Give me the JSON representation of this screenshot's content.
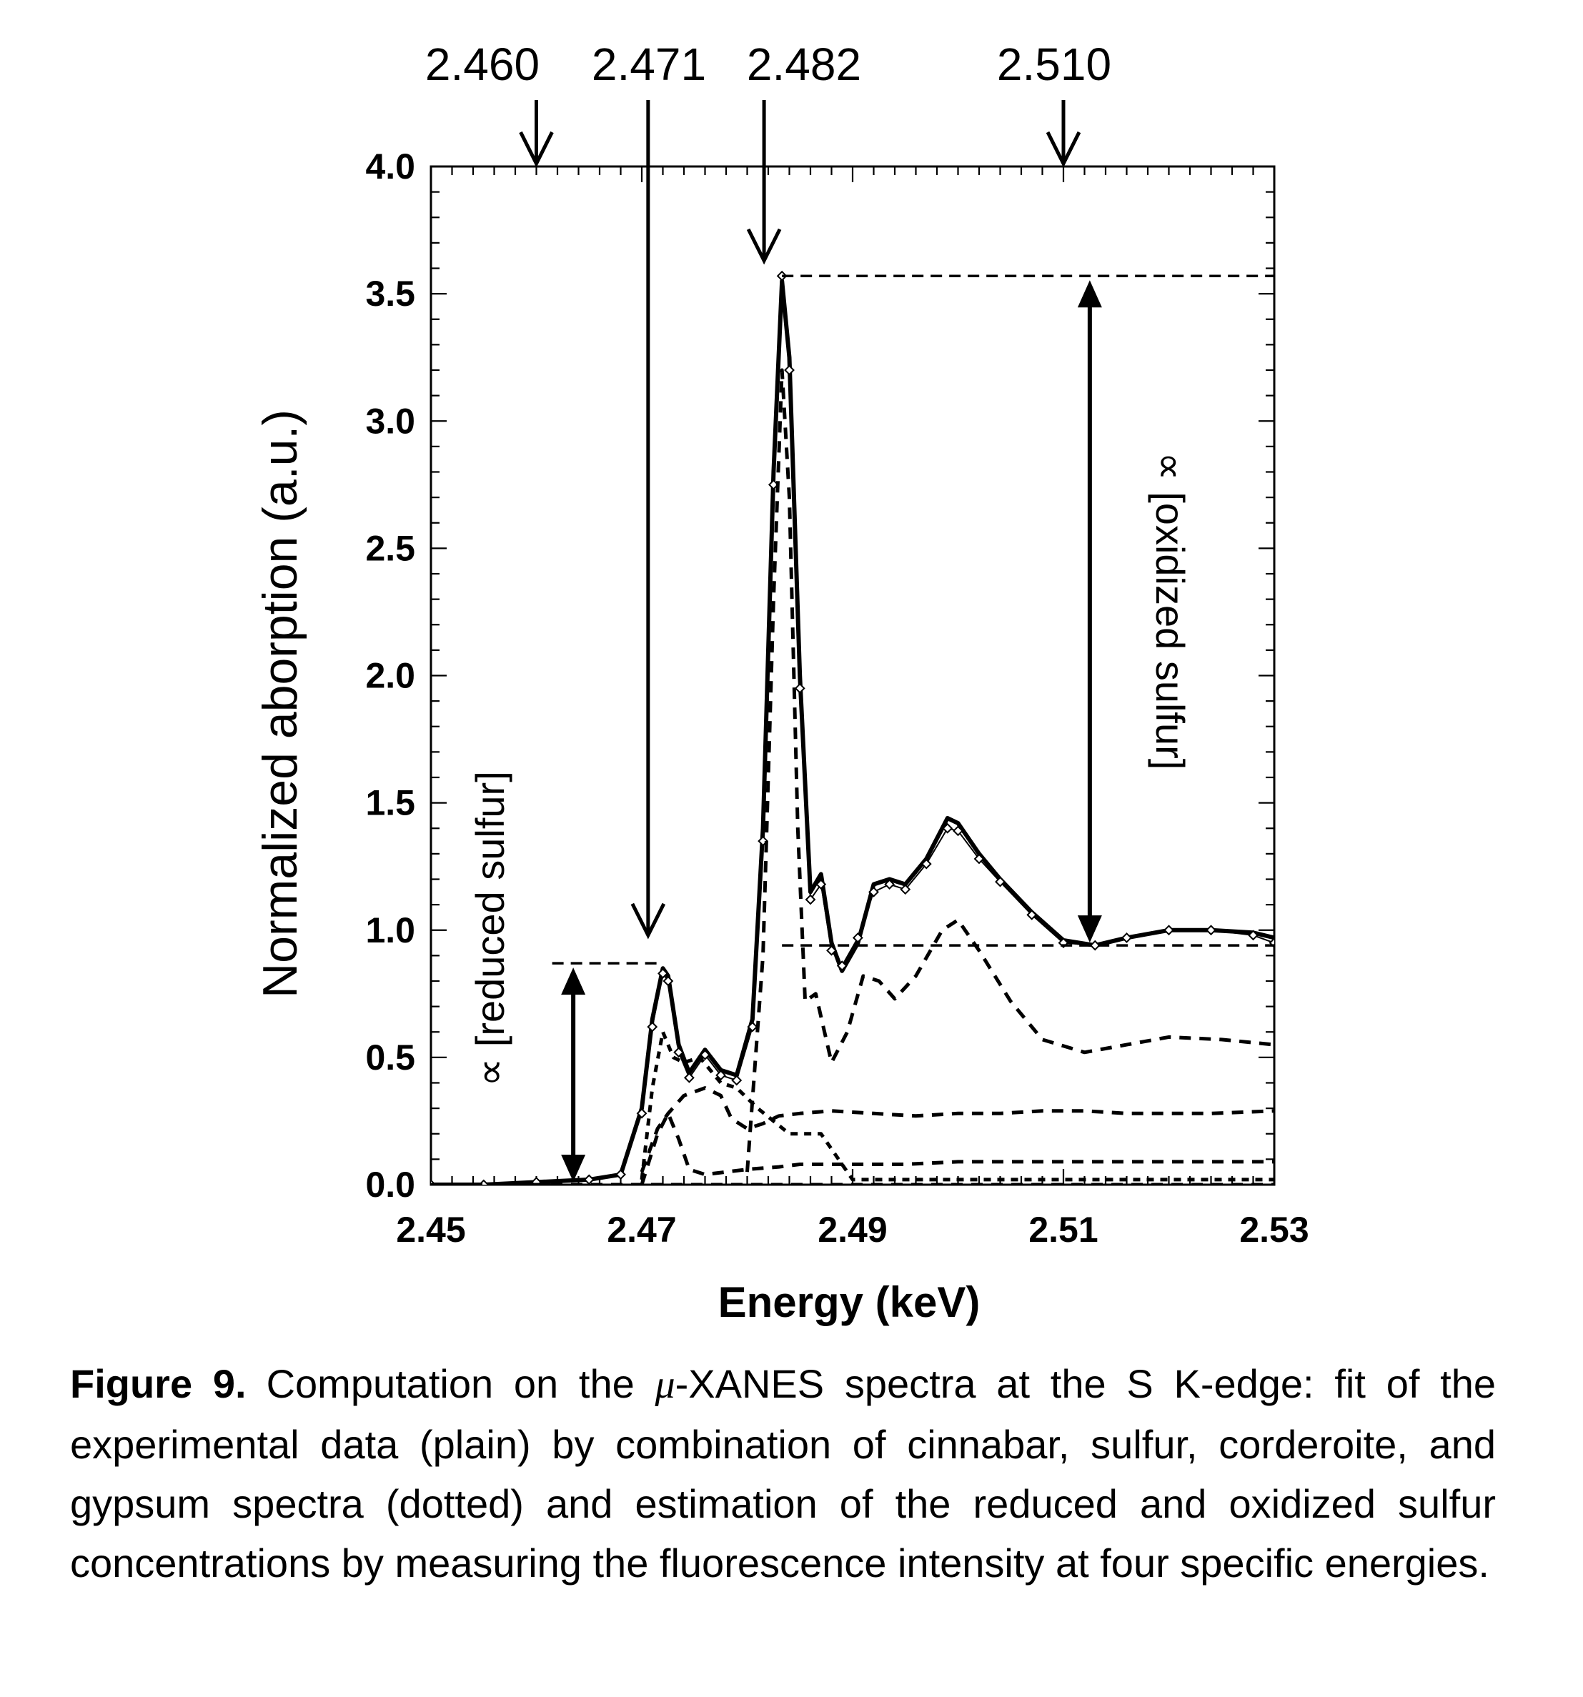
{
  "chart_data": {
    "type": "line",
    "xlabel": "Energy (keV)",
    "ylabel": "Normalized aborption (a.u.)",
    "xlim": [
      2.45,
      2.53
    ],
    "ylim": [
      0.0,
      4.0
    ],
    "x_ticks": [
      "2.45",
      "2.47",
      "2.49",
      "2.51",
      "2.53"
    ],
    "y_ticks": [
      "0.0",
      "0.5",
      "1.0",
      "1.5",
      "2.0",
      "2.5",
      "3.0",
      "3.5",
      "4.0"
    ],
    "grid": false,
    "energy_markers": [
      {
        "label": "2.460",
        "x": 2.46
      },
      {
        "label": "2.471",
        "x": 2.471
      },
      {
        "label": "2.482",
        "x": 2.482
      },
      {
        "label": "2.510",
        "x": 2.51
      }
    ],
    "reduced_annotation": {
      "text": "∝ [reduced sulfur]",
      "level": 0.87
    },
    "oxidized_annotation": {
      "text": "∝ [oxidized sulfur]",
      "top": 3.57,
      "bottom": 0.94
    },
    "series": [
      {
        "style": "solid",
        "x": [
          2.45,
          2.455,
          2.46,
          2.465,
          2.468,
          2.47,
          2.471,
          2.472,
          2.4725,
          2.4735,
          2.4745,
          2.476,
          2.4775,
          2.479,
          2.4805,
          2.4815,
          2.4825,
          2.4833,
          2.484,
          2.485,
          2.486,
          2.487,
          2.488,
          2.489,
          2.4905,
          2.492,
          2.4935,
          2.495,
          2.497,
          2.499,
          2.5,
          2.502,
          2.504,
          2.507,
          2.51,
          2.513,
          2.516,
          2.52,
          2.524,
          2.528,
          2.53
        ],
        "y": [
          0.0,
          0.0,
          0.01,
          0.02,
          0.04,
          0.3,
          0.65,
          0.85,
          0.82,
          0.55,
          0.44,
          0.53,
          0.45,
          0.43,
          0.65,
          1.4,
          2.8,
          3.55,
          3.25,
          2.0,
          1.15,
          1.22,
          0.95,
          0.84,
          0.95,
          1.18,
          1.2,
          1.18,
          1.28,
          1.44,
          1.42,
          1.3,
          1.2,
          1.07,
          0.96,
          0.94,
          0.97,
          1.0,
          1.0,
          0.99,
          0.97
        ]
      },
      {
        "style": "diamonds",
        "x": [
          2.45,
          2.455,
          2.46,
          2.465,
          2.468,
          2.47,
          2.471,
          2.472,
          2.4725,
          2.4735,
          2.4745,
          2.476,
          2.4775,
          2.479,
          2.4805,
          2.4815,
          2.4825,
          2.4833,
          2.484,
          2.485,
          2.486,
          2.487,
          2.488,
          2.489,
          2.4905,
          2.492,
          2.4935,
          2.495,
          2.497,
          2.499,
          2.5,
          2.502,
          2.504,
          2.507,
          2.51,
          2.513,
          2.516,
          2.52,
          2.524,
          2.528,
          2.53
        ],
        "y": [
          0.0,
          0.0,
          0.01,
          0.02,
          0.04,
          0.28,
          0.62,
          0.83,
          0.8,
          0.52,
          0.42,
          0.51,
          0.43,
          0.41,
          0.62,
          1.35,
          2.75,
          3.57,
          3.2,
          1.95,
          1.12,
          1.18,
          0.92,
          0.86,
          0.97,
          1.15,
          1.18,
          1.16,
          1.26,
          1.4,
          1.39,
          1.28,
          1.19,
          1.06,
          0.95,
          0.94,
          0.97,
          1.0,
          1.0,
          0.98,
          0.95
        ]
      },
      {
        "style": "dashed",
        "x": [
          2.47,
          2.4715,
          2.4725,
          2.474,
          2.476,
          2.4775,
          2.4785,
          2.48,
          2.4815,
          2.483,
          2.485,
          2.488,
          2.492,
          2.496,
          2.5,
          2.504,
          2.508,
          2.512,
          2.516,
          2.52,
          2.524,
          2.53
        ],
        "y": [
          0.05,
          0.22,
          0.28,
          0.35,
          0.38,
          0.35,
          0.26,
          0.22,
          0.24,
          0.27,
          0.28,
          0.29,
          0.28,
          0.27,
          0.28,
          0.28,
          0.29,
          0.29,
          0.28,
          0.28,
          0.28,
          0.29
        ]
      },
      {
        "style": "dashed",
        "x": [
          2.47,
          2.4715,
          2.4725,
          2.4735,
          2.4745,
          2.476,
          2.478,
          2.48,
          2.483,
          2.485,
          2.49,
          2.495,
          2.5,
          2.51,
          2.52,
          2.53
        ],
        "y": [
          0.0,
          0.2,
          0.28,
          0.18,
          0.06,
          0.04,
          0.05,
          0.06,
          0.07,
          0.08,
          0.08,
          0.08,
          0.09,
          0.09,
          0.09,
          0.09
        ]
      },
      {
        "style": "dotted",
        "x": [
          2.47,
          2.471,
          2.472,
          2.473,
          2.474,
          2.4755,
          2.4765,
          2.4775,
          2.479,
          2.481,
          2.484,
          2.487,
          2.49,
          2.5,
          2.51,
          2.52,
          2.53
        ],
        "y": [
          0.02,
          0.38,
          0.6,
          0.5,
          0.48,
          0.5,
          0.45,
          0.4,
          0.38,
          0.3,
          0.2,
          0.2,
          0.02,
          0.02,
          0.02,
          0.02,
          0.02
        ]
      },
      {
        "style": "dashed",
        "x": [
          2.48,
          2.4815,
          2.4825,
          2.4833,
          2.484,
          2.4848,
          2.4855,
          2.4865,
          2.488,
          2.4895,
          2.491,
          2.4925,
          2.494,
          2.496,
          2.4985,
          2.5,
          2.502,
          2.505,
          2.508,
          2.512,
          2.516,
          2.52,
          2.525,
          2.53
        ],
        "y": [
          0.05,
          0.9,
          2.3,
          3.2,
          2.7,
          1.4,
          0.72,
          0.75,
          0.48,
          0.6,
          0.82,
          0.8,
          0.73,
          0.82,
          1.0,
          1.04,
          0.92,
          0.72,
          0.57,
          0.52,
          0.55,
          0.58,
          0.57,
          0.55
        ]
      },
      {
        "style": "dashed",
        "x": [
          2.45,
          2.47,
          2.48,
          2.49,
          2.5,
          2.51,
          2.52,
          2.53
        ],
        "y": [
          0.0,
          0.0,
          0.0,
          0.0,
          0.0,
          0.0,
          0.0,
          0.0
        ]
      }
    ]
  },
  "caption": {
    "label": "Figure 9.",
    "text_before_mu": "Computation on the ",
    "mu": "μ",
    "text_after_mu": "-XANES spectra at the S K-edge: fit of the experimental data (plain) by combination of cinnabar, sulfur, corderoite, and gypsum spectra (dotted) and estimation of the reduced and oxidized sulfur concentrations by measuring the fluorescence intensity at four specific energies."
  }
}
